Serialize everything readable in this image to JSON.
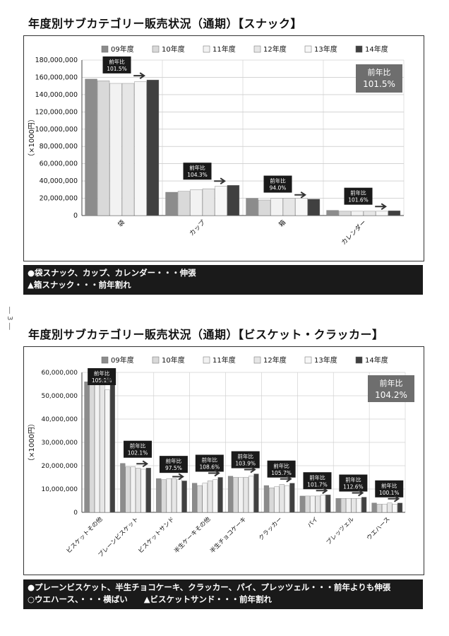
{
  "page_number": "― 3 ―",
  "chart_data": [
    {
      "type": "bar",
      "title": "年度別サブカテゴリー販売状況（通期）【スナック】",
      "ylabel": "（×1000円）",
      "ylim": [
        0,
        180000000
      ],
      "yticks": [
        "0",
        "20,000,000",
        "40,000,000",
        "60,000,000",
        "80,000,000",
        "100,000,000",
        "120,000,000",
        "140,000,000",
        "160,000,000",
        "180,000,000"
      ],
      "categories": [
        "袋",
        "カップ",
        "箱",
        "カレンダー"
      ],
      "series": [
        {
          "name": "09年度",
          "color": "#8c8c8c",
          "values": [
            158000000,
            27000000,
            20000000,
            6000000
          ]
        },
        {
          "name": "10年度",
          "color": "#d9d9d9",
          "values": [
            156000000,
            28000000,
            18000000,
            5000000
          ]
        },
        {
          "name": "11年度",
          "color": "#f2f2f2",
          "values": [
            153000000,
            30000000,
            20000000,
            5000000
          ]
        },
        {
          "name": "12年度",
          "color": "#e6e6e6",
          "values": [
            153000000,
            31000000,
            20000000,
            5000000
          ]
        },
        {
          "name": "13年度",
          "color": "#f7f7f7",
          "values": [
            155000000,
            34000000,
            20000000,
            5000000
          ]
        },
        {
          "name": "14年度",
          "color": "#404040",
          "values": [
            157000000,
            35000000,
            19000000,
            5500000
          ]
        }
      ],
      "yoy_labels": [
        {
          "label": "前年比",
          "value": "101.5%"
        },
        {
          "label": "前年比",
          "value": "104.3%"
        },
        {
          "label": "前年比",
          "value": "94.0%"
        },
        {
          "label": "前年比",
          "value": "101.6%"
        }
      ],
      "total_yoy": {
        "label": "前年比",
        "value": "101.5%"
      }
    },
    {
      "type": "bar",
      "title": "年度別サブカテゴリー販売状況（通期）【ビスケット・クラッカー】",
      "ylabel": "（×1000円）",
      "ylim": [
        0,
        60000000
      ],
      "yticks": [
        "0",
        "10,000,000",
        "20,000,000",
        "30,000,000",
        "40,000,000",
        "50,000,000",
        "60,000,000"
      ],
      "categories": [
        "ビスケットその他",
        "プレーンビスケット",
        "ビスケットサンド",
        "半生ケーキその他",
        "半生チョコケーキ",
        "クラッカー",
        "パイ",
        "プレッツェル",
        "ウエハース"
      ],
      "series": [
        {
          "name": "09年度",
          "color": "#8c8c8c",
          "values": [
            56000000,
            21000000,
            14500000,
            12500000,
            15500000,
            11500000,
            7000000,
            6000000,
            4000000
          ]
        },
        {
          "name": "10年度",
          "color": "#d9d9d9",
          "values": [
            56000000,
            19500000,
            14000000,
            11500000,
            15000000,
            10500000,
            7000000,
            6000000,
            3500000
          ]
        },
        {
          "name": "11年度",
          "color": "#f2f2f2",
          "values": [
            55500000,
            19500000,
            14500000,
            12500000,
            15000000,
            11000000,
            7000000,
            6000000,
            3500000
          ]
        },
        {
          "name": "12年度",
          "color": "#e6e6e6",
          "values": [
            55000000,
            19000000,
            14500000,
            13500000,
            15000000,
            12000000,
            7000000,
            6000000,
            4000000
          ]
        },
        {
          "name": "13年度",
          "color": "#f7f7f7",
          "values": [
            52500000,
            18500000,
            14000000,
            14000000,
            15500000,
            11500000,
            7500000,
            6000000,
            3500000
          ]
        },
        {
          "name": "14年度",
          "color": "#404040",
          "values": [
            55000000,
            19000000,
            13500000,
            15000000,
            16500000,
            12500000,
            7500000,
            6500000,
            4000000
          ]
        }
      ],
      "yoy_labels": [
        {
          "label": "前年比",
          "value": "105.1%"
        },
        {
          "label": "前年比",
          "value": "102.1%"
        },
        {
          "label": "前年比",
          "value": "97.5%"
        },
        {
          "label": "前年比",
          "value": "108.6%"
        },
        {
          "label": "前年比",
          "value": "103.9%"
        },
        {
          "label": "前年比",
          "value": "105.7%"
        },
        {
          "label": "前年比",
          "value": "101.7%"
        },
        {
          "label": "前年比",
          "value": "112.6%"
        },
        {
          "label": "前年比",
          "value": "100.1%"
        }
      ],
      "total_yoy": {
        "label": "前年比",
        "value": "104.2%"
      }
    }
  ],
  "notes": [
    [
      "●袋スナック、カップ、カレンダー・・・伸張",
      "▲箱スナック・・・前年割れ"
    ],
    [
      "●プレーンビスケット、半生チョコケーキ、クラッカー、パイ、プレッツェル・・・前年よりも伸張",
      "○ウエハース、・・・横ばい　　▲ビスケットサンド・・・前年割れ"
    ]
  ]
}
